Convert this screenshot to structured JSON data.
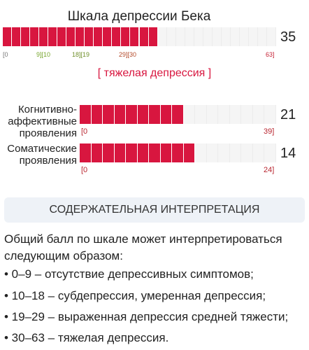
{
  "title": "Шкала депрессии Бека",
  "main_bar": {
    "score": "35",
    "value": 35,
    "max": 63,
    "ticks": [
      {
        "text": "[0",
        "cls": "c0"
      },
      {
        "text": "9][10",
        "cls": "c1"
      },
      {
        "text": "18][19",
        "cls": "c2"
      },
      {
        "text": "29][30",
        "cls": "c3"
      },
      {
        "text": "63]",
        "cls": "c4"
      }
    ]
  },
  "severity": "[ тяжелая депрессия ]",
  "subscales": [
    {
      "label_lines": [
        "Когнитивно-",
        "аффективные",
        "проявления"
      ],
      "score": "21",
      "value": 21,
      "max": 39,
      "min_label": "[0",
      "max_label": "39]"
    },
    {
      "label_lines": [
        "Соматические",
        "проявления"
      ],
      "score": "14",
      "value": 14,
      "max": 24,
      "min_label": "[0",
      "max_label": "24]"
    }
  ],
  "section_header": "СОДЕРЖАТЕЛЬНАЯ ИНТЕРПРЕТАЦИЯ",
  "intro": "Общий балл по шкале может интерпретироваться следующим образом:",
  "items": [
    "• 0–9 – отсутствие депрессивных симптомов;",
    "• 10–18 – субдепрессия, умеренная депрессия;",
    "• 19–29 – выраженная депрессия средней тяжести;",
    "• 30–63 – тяжелая депрессия."
  ],
  "colors": {
    "bar_fill": "#d8163f",
    "bar_empty": "#f5f5f5",
    "severity": "#d8163f"
  }
}
